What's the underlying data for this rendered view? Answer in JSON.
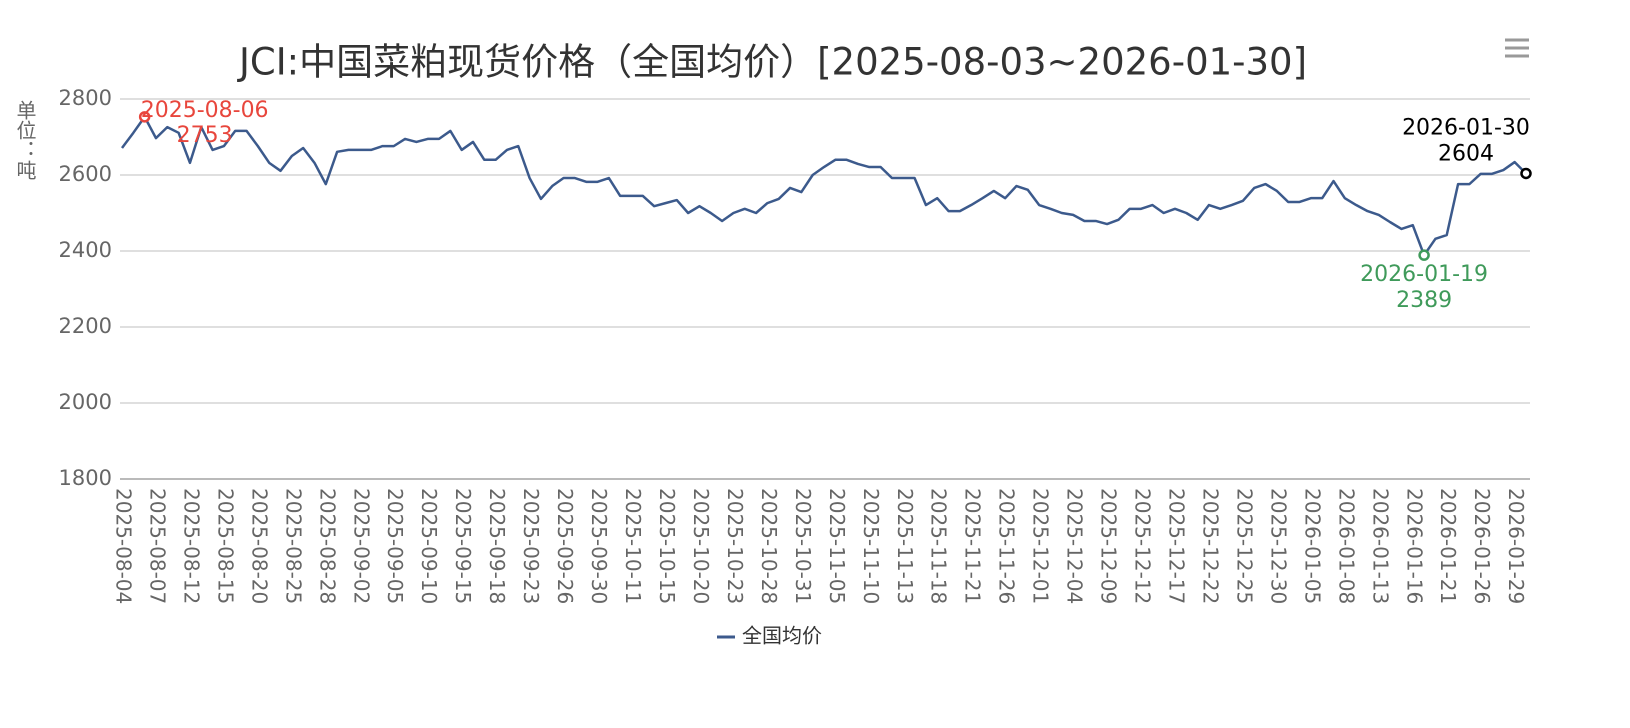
{
  "chart_data": {
    "type": "line",
    "title": "JCI:中国菜粕现货价格（全国均价）[2025-08-03~2026-01-30]",
    "y_label": "单位：吨",
    "ylim": [
      1800,
      2800
    ],
    "yticks": [
      1800,
      2000,
      2200,
      2400,
      2600,
      2800
    ],
    "grid": true,
    "legend": "bottom",
    "categories": [
      "2025-08-04",
      null,
      null,
      "2025-08-07",
      null,
      null,
      "2025-08-12",
      null,
      null,
      "2025-08-15",
      null,
      null,
      "2025-08-20",
      null,
      null,
      "2025-08-25",
      null,
      null,
      "2025-08-28",
      null,
      null,
      "2025-09-02",
      null,
      null,
      "2025-09-05",
      null,
      null,
      "2025-09-10",
      null,
      null,
      "2025-09-15",
      null,
      null,
      "2025-09-18",
      null,
      null,
      "2025-09-23",
      null,
      null,
      "2025-09-26",
      null,
      null,
      "2025-09-30",
      null,
      null,
      "2025-10-11",
      null,
      null,
      "2025-10-15",
      null,
      null,
      "2025-10-20",
      null,
      null,
      "2025-10-23",
      null,
      null,
      "2025-10-28",
      null,
      null,
      "2025-10-31",
      null,
      null,
      "2025-11-05",
      null,
      null,
      "2025-11-10",
      null,
      null,
      "2025-11-13",
      null,
      null,
      "2025-11-18",
      null,
      null,
      "2025-11-21",
      null,
      null,
      "2025-11-26",
      null,
      null,
      "2025-12-01",
      null,
      null,
      "2025-12-04",
      null,
      null,
      "2025-12-09",
      null,
      null,
      "2025-12-12",
      null,
      null,
      "2025-12-17",
      null,
      null,
      "2025-12-22",
      null,
      null,
      "2025-12-25",
      null,
      null,
      "2025-12-30",
      null,
      null,
      "2026-01-05",
      null,
      null,
      "2026-01-08",
      null,
      null,
      "2026-01-13",
      null,
      null,
      "2026-01-16",
      null,
      null,
      "2026-01-21",
      null,
      null,
      "2026-01-26",
      null,
      null,
      "2026-01-29",
      null
    ],
    "series": [
      {
        "name": "全国均价",
        "color": "#3c5a8c",
        "values": [
          2671,
          2711,
          2753,
          2697,
          2726,
          2711,
          2632,
          2726,
          2666,
          2676,
          2716,
          2716,
          2676,
          2632,
          2611,
          2650,
          2671,
          2632,
          2576,
          2661,
          2666,
          2666,
          2666,
          2676,
          2676,
          2695,
          2687,
          2695,
          2695,
          2716,
          2666,
          2687,
          2640,
          2640,
          2666,
          2676,
          2592,
          2537,
          2571,
          2592,
          2592,
          2582,
          2582,
          2592,
          2545,
          2545,
          2545,
          2518,
          2526,
          2534,
          2500,
          2518,
          2500,
          2479,
          2500,
          2511,
          2500,
          2526,
          2537,
          2566,
          2555,
          2600,
          2621,
          2640,
          2640,
          2629,
          2621,
          2621,
          2592,
          2592,
          2592,
          2521,
          2539,
          2505,
          2505,
          2521,
          2539,
          2558,
          2539,
          2571,
          2561,
          2521,
          2511,
          2500,
          2495,
          2479,
          2479,
          2471,
          2482,
          2511,
          2511,
          2521,
          2500,
          2511,
          2500,
          2482,
          2521,
          2511,
          2521,
          2532,
          2566,
          2576,
          2558,
          2529,
          2529,
          2539,
          2539,
          2584,
          2539,
          2521,
          2505,
          2495,
          2476,
          2458,
          2468,
          2389,
          2432,
          2442,
          2576,
          2576,
          2603,
          2603,
          2613,
          2634,
          2604
        ]
      }
    ],
    "annotations": [
      {
        "x": "2025-08-06",
        "value": 2753,
        "color": "#e8463c"
      },
      {
        "x": "2026-01-19",
        "value": 2389,
        "color": "#3f9a5a"
      },
      {
        "x": "2026-01-30",
        "value": 2604,
        "color": "#000000"
      }
    ]
  }
}
